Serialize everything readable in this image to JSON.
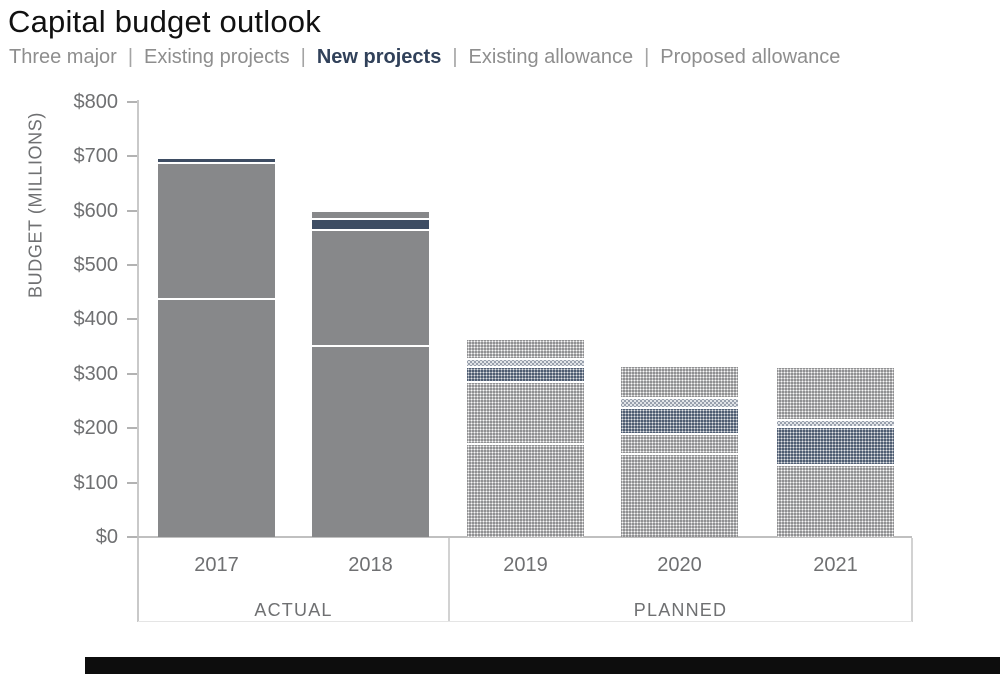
{
  "title": "Capital budget outlook",
  "legend": {
    "items": [
      {
        "label": "Three major",
        "active": false
      },
      {
        "label": "Existing projects",
        "active": false
      },
      {
        "label": "New projects",
        "active": true
      },
      {
        "label": "Existing allowance",
        "active": false
      },
      {
        "label": "Proposed allowance",
        "active": false
      }
    ],
    "separator": "|"
  },
  "colors": {
    "gray": "#87888a",
    "navy": "#3e4d63",
    "planned_gray_base": "#8a8b8d",
    "planned_navy_base": "#47566c",
    "highlight_text": "#31415a",
    "axis_text": "#6f7072"
  },
  "chart_data": {
    "type": "bar",
    "stacked": true,
    "title": "Capital budget outlook",
    "xlabel": "",
    "ylabel": "BUDGET (MILLIONS)",
    "ylim": [
      0,
      800
    ],
    "yticks": [
      "$0",
      "$100",
      "$200",
      "$300",
      "$400",
      "$500",
      "$600",
      "$700",
      "$800"
    ],
    "grid": false,
    "legend_position": "top",
    "categories": [
      "2017",
      "2018",
      "2019",
      "2020",
      "2021"
    ],
    "bar_kind": [
      "actual",
      "actual",
      "planned",
      "planned",
      "planned"
    ],
    "groups": [
      {
        "label": "ACTUAL",
        "years": [
          "2017",
          "2018"
        ]
      },
      {
        "label": "PLANNED",
        "years": [
          "2019",
          "2020",
          "2021"
        ]
      }
    ],
    "highlight_series": "New projects",
    "series": [
      {
        "name": "Three major",
        "values": [
          435,
          350,
          170,
          150,
          130
        ]
      },
      {
        "name": "Existing projects",
        "values": [
          250,
          212,
          113,
          38,
          0
        ]
      },
      {
        "name": "New projects",
        "values": [
          10,
          20,
          28,
          48,
          70
        ]
      },
      {
        "name": "Existing allowance",
        "values": [
          0,
          15,
          14,
          18,
          13
        ]
      },
      {
        "name": "Proposed allowance",
        "values": [
          0,
          0,
          38,
          58,
          97
        ]
      }
    ],
    "totals": [
      695,
      597,
      363,
      312,
      310
    ],
    "style_note": "ACTUAL bars solid; PLANNED bars dotted pattern; New projects navy; Existing allowance (planned) ring pattern"
  }
}
